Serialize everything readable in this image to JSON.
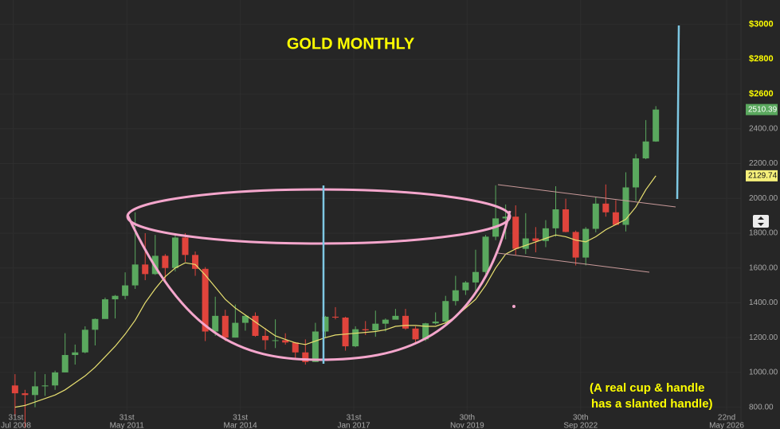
{
  "chart_data": {
    "type": "candlestick",
    "title": "GOLD MONTHLY",
    "annotation": [
      "(A real cup & handle",
      "has a slanted handle)"
    ],
    "callouts": [
      {
        "value": 3000,
        "label": "$3000"
      },
      {
        "value": 2800,
        "label": "$2800"
      },
      {
        "value": 2600,
        "label": "$2600"
      }
    ],
    "up_color": "#5aa85e",
    "down_color": "#e0443c",
    "x": [
      "2008-07",
      "2008-10",
      "2009-01",
      "2009-04",
      "2009-07",
      "2009-10",
      "2010-01",
      "2010-04",
      "2010-07",
      "2010-10",
      "2011-01",
      "2011-04",
      "2011-07",
      "2011-10",
      "2012-01",
      "2012-04",
      "2012-07",
      "2012-10",
      "2013-01",
      "2013-04",
      "2013-07",
      "2013-10",
      "2014-01",
      "2014-04",
      "2014-07",
      "2014-10",
      "2015-01",
      "2015-04",
      "2015-07",
      "2015-10",
      "2016-01",
      "2016-04",
      "2016-07",
      "2016-10",
      "2017-01",
      "2017-04",
      "2017-07",
      "2017-10",
      "2018-01",
      "2018-04",
      "2018-07",
      "2018-10",
      "2019-01",
      "2019-04",
      "2019-07",
      "2019-10",
      "2020-01",
      "2020-04",
      "2020-07",
      "2020-10",
      "2021-01",
      "2021-04",
      "2021-07",
      "2021-10",
      "2022-01",
      "2022-04",
      "2022-07",
      "2022-10",
      "2023-01",
      "2023-04",
      "2023-07",
      "2023-10",
      "2024-01",
      "2024-04",
      "2024-07"
    ],
    "open": [
      925,
      880,
      870,
      920,
      925,
      1000,
      1100,
      1115,
      1245,
      1307,
      1420,
      1440,
      1500,
      1620,
      1565,
      1670,
      1600,
      1775,
      1675,
      1595,
      1235,
      1325,
      1200,
      1285,
      1325,
      1210,
      1185,
      1185,
      1172,
      1115,
      1060,
      1235,
      1320,
      1315,
      1150,
      1248,
      1242,
      1280,
      1303,
      1325,
      1252,
      1190,
      1282,
      1292,
      1410,
      1472,
      1517,
      1577,
      1780,
      1885,
      1895,
      1710,
      1770,
      1755,
      1828,
      1937,
      1807,
      1660,
      1825,
      1970,
      1920,
      1848,
      2063,
      2230,
      2327
    ],
    "high": [
      990,
      900,
      1005,
      990,
      1010,
      1225,
      1160,
      1265,
      1310,
      1430,
      1445,
      1575,
      1920,
      1800,
      1790,
      1680,
      1790,
      1800,
      1695,
      1605,
      1435,
      1360,
      1390,
      1330,
      1345,
      1255,
      1305,
      1225,
      1175,
      1190,
      1285,
      1325,
      1375,
      1320,
      1265,
      1295,
      1355,
      1310,
      1365,
      1365,
      1265,
      1285,
      1345,
      1440,
      1555,
      1525,
      1705,
      1790,
      2075,
      1965,
      1960,
      1915,
      1835,
      1875,
      2070,
      1998,
      1815,
      1835,
      2010,
      2080,
      1990,
      2150,
      2255,
      2450,
      2530
    ],
    "low": [
      740,
      680,
      800,
      865,
      900,
      1000,
      1045,
      1110,
      1155,
      1310,
      1310,
      1420,
      1480,
      1530,
      1560,
      1530,
      1580,
      1635,
      1555,
      1180,
      1210,
      1180,
      1200,
      1240,
      1205,
      1130,
      1140,
      1160,
      1075,
      1045,
      1060,
      1200,
      1305,
      1125,
      1145,
      1215,
      1205,
      1235,
      1305,
      1245,
      1160,
      1180,
      1275,
      1265,
      1385,
      1445,
      1450,
      1565,
      1760,
      1765,
      1675,
      1680,
      1690,
      1720,
      1780,
      1805,
      1615,
      1615,
      1805,
      1895,
      1845,
      1810,
      1985,
      2225,
      2325
    ],
    "close": [
      880,
      870,
      920,
      925,
      1000,
      1100,
      1115,
      1245,
      1307,
      1420,
      1440,
      1500,
      1620,
      1565,
      1670,
      1600,
      1775,
      1675,
      1595,
      1235,
      1325,
      1200,
      1285,
      1325,
      1210,
      1185,
      1185,
      1172,
      1115,
      1060,
      1235,
      1320,
      1315,
      1150,
      1248,
      1242,
      1280,
      1303,
      1325,
      1252,
      1190,
      1282,
      1292,
      1410,
      1472,
      1517,
      1577,
      1780,
      1885,
      1895,
      1710,
      1770,
      1755,
      1828,
      1937,
      1807,
      1660,
      1825,
      1970,
      1920,
      1848,
      2063,
      2230,
      2327,
      2510.39
    ],
    "ma": {
      "color": "#e8e070",
      "values": [
        800,
        810,
        830,
        850,
        870,
        900,
        940,
        980,
        1030,
        1090,
        1150,
        1220,
        1300,
        1400,
        1480,
        1550,
        1600,
        1630,
        1620,
        1560,
        1490,
        1420,
        1370,
        1330,
        1290,
        1250,
        1210,
        1190,
        1170,
        1160,
        1180,
        1200,
        1215,
        1220,
        1225,
        1230,
        1235,
        1245,
        1265,
        1270,
        1270,
        1265,
        1265,
        1285,
        1320,
        1370,
        1420,
        1500,
        1600,
        1680,
        1710,
        1730,
        1750,
        1770,
        1790,
        1780,
        1760,
        1750,
        1780,
        1820,
        1850,
        1880,
        1950,
        2050,
        2129.74
      ]
    },
    "xlim": [
      "2008-04",
      "2026-10"
    ],
    "xticks": [
      {
        "value": "2008-07-31",
        "label": [
          "31st",
          "Jul 2008"
        ]
      },
      {
        "value": "2011-05-31",
        "label": [
          "31st",
          "May 2011"
        ]
      },
      {
        "value": "2014-03-31",
        "label": [
          "31st",
          "Mar 2014"
        ]
      },
      {
        "value": "2017-01-31",
        "label": [
          "31st",
          "Jan 2017"
        ]
      },
      {
        "value": "2019-11-30",
        "label": [
          "30th",
          "Nov 2019"
        ]
      },
      {
        "value": "2022-09-30",
        "label": [
          "30th",
          "Sep 2022"
        ]
      },
      {
        "value": "2026-05-22",
        "label": [
          "22nd",
          "May 2026"
        ]
      }
    ],
    "ylim": [
      780,
      3140
    ],
    "yticks": [
      {
        "value": 800,
        "label": "800.00"
      },
      {
        "value": 1000,
        "label": "1000.00"
      },
      {
        "value": 1200,
        "label": "1200.00"
      },
      {
        "value": 1400,
        "label": "1400.00"
      },
      {
        "value": 1600,
        "label": "1600.00"
      },
      {
        "value": 1800,
        "label": "1800.00"
      },
      {
        "value": 2000,
        "label": "2000.00"
      },
      {
        "value": 2200,
        "label": "2200.00"
      },
      {
        "value": 2400,
        "label": "2400.00"
      },
      {
        "value": 2600,
        "label": "2600.00"
      },
      {
        "value": 2800,
        "label": "2800.00"
      },
      {
        "value": 3000,
        "label": "3000.00"
      }
    ],
    "grid": true
  }
}
